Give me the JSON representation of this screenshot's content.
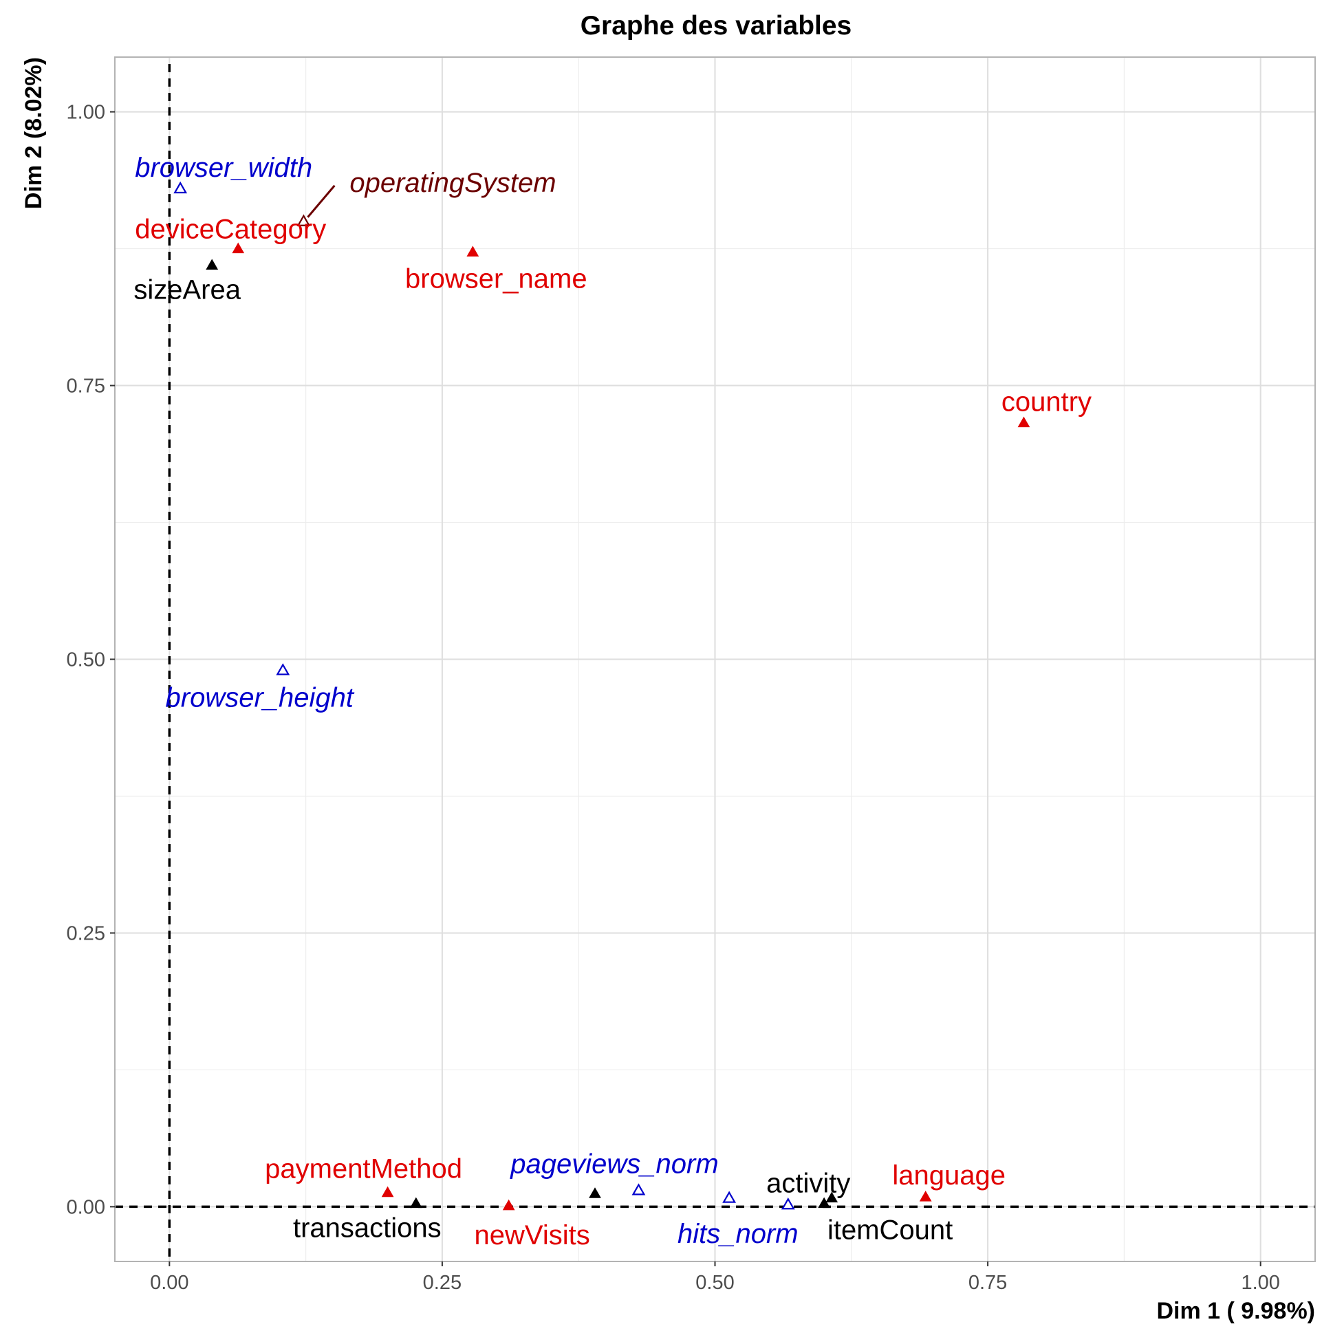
{
  "chart_data": {
    "type": "scatter",
    "title": "Graphe des variables",
    "xlabel": "Dim 1 ( 9.98%)",
    "ylabel": "Dim 2 (8.02%)",
    "xlim": [
      -0.05,
      1.05
    ],
    "ylim": [
      -0.05,
      1.05
    ],
    "x_ticks": [
      0.0,
      0.25,
      0.5,
      0.75,
      1.0
    ],
    "y_ticks": [
      0.0,
      0.25,
      0.5,
      0.75,
      1.0
    ],
    "x_tick_labels": [
      "0.00",
      "0.25",
      "0.50",
      "0.75",
      "1.00"
    ],
    "y_tick_labels": [
      "0.00",
      "0.25",
      "0.50",
      "0.75",
      "1.00"
    ],
    "grid": true,
    "reference_lines": {
      "x": 0,
      "y": 0,
      "style": "dashed"
    },
    "colors": {
      "quali": "#e00000",
      "quanti_sup": "#0000cc",
      "quanti": "#000000",
      "quali_sup": "#6b0000"
    },
    "points": [
      {
        "name": "browser_width",
        "x": 0.01,
        "y": 0.93,
        "group": "quanti_sup",
        "marker": "open"
      },
      {
        "name": "operatingSystem",
        "x": 0.123,
        "y": 0.9,
        "group": "quali_sup",
        "marker": "open"
      },
      {
        "name": "deviceCategory",
        "x": 0.063,
        "y": 0.875,
        "group": "quali",
        "marker": "filled"
      },
      {
        "name": "sizeArea",
        "x": 0.039,
        "y": 0.86,
        "group": "quanti",
        "marker": "filled"
      },
      {
        "name": "browser_name",
        "x": 0.278,
        "y": 0.872,
        "group": "quali",
        "marker": "filled"
      },
      {
        "name": "country",
        "x": 0.783,
        "y": 0.716,
        "group": "quali",
        "marker": "filled"
      },
      {
        "name": "browser_height",
        "x": 0.104,
        "y": 0.49,
        "group": "quanti_sup",
        "marker": "open"
      },
      {
        "name": "paymentMethod",
        "x": 0.2,
        "y": 0.013,
        "group": "quali",
        "marker": "filled"
      },
      {
        "name": "transactions",
        "x": 0.226,
        "y": 0.003,
        "group": "quanti",
        "marker": "filled"
      },
      {
        "name": "newVisits",
        "x": 0.311,
        "y": 0.001,
        "group": "quali",
        "marker": "filled"
      },
      {
        "name": "pageviews_norm",
        "x": 0.43,
        "y": 0.015,
        "group": "quanti_sup",
        "marker": "open"
      },
      {
        "name": "hits_norm",
        "x": 0.567,
        "y": 0.002,
        "group": "quanti_sup",
        "marker": "open"
      },
      {
        "name": "activity",
        "x": 0.607,
        "y": 0.008,
        "group": "quanti",
        "marker": "filled"
      },
      {
        "name": "itemCount",
        "x": 0.6,
        "y": 0.003,
        "group": "quanti",
        "marker": "filled"
      },
      {
        "name": "language",
        "x": 0.693,
        "y": 0.009,
        "group": "quali",
        "marker": "filled"
      }
    ],
    "extra_markers": [
      {
        "x": 0.39,
        "y": 0.012,
        "group": "quanti",
        "marker": "filled"
      },
      {
        "x": 0.513,
        "y": 0.008,
        "group": "quanti_sup",
        "marker": "open"
      }
    ]
  }
}
